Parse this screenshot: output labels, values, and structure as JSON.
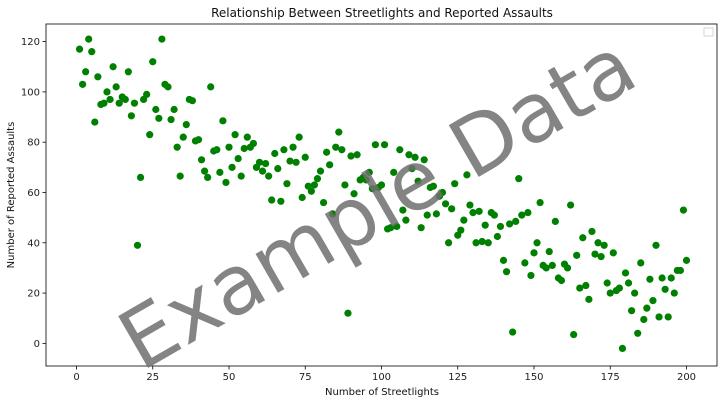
{
  "chart_data": {
    "type": "scatter",
    "title": "Relationship Between Streetlights and Reported Assaults",
    "xlabel": "Number of Streetlights",
    "ylabel": "Number of Reported Assaults",
    "xlim": [
      -10,
      210
    ],
    "ylim": [
      -9,
      127
    ],
    "xticks": [
      0,
      25,
      50,
      75,
      100,
      125,
      150,
      175,
      200
    ],
    "yticks": [
      0,
      20,
      40,
      60,
      80,
      100,
      120
    ],
    "grid": false,
    "legend": "top-right",
    "watermark": "Example Data",
    "point_color": "#008000",
    "points": [
      [
        1,
        117
      ],
      [
        2,
        103
      ],
      [
        3,
        108
      ],
      [
        4,
        121
      ],
      [
        5,
        116
      ],
      [
        6,
        88
      ],
      [
        7,
        106
      ],
      [
        8,
        95
      ],
      [
        9,
        95.5
      ],
      [
        10,
        100
      ],
      [
        11,
        97
      ],
      [
        12,
        110
      ],
      [
        13,
        102
      ],
      [
        14,
        95.5
      ],
      [
        15,
        98
      ],
      [
        16,
        97
      ],
      [
        17,
        108
      ],
      [
        18,
        90.5
      ],
      [
        19,
        95.5
      ],
      [
        20,
        39
      ],
      [
        21,
        66
      ],
      [
        22,
        97
      ],
      [
        23,
        99
      ],
      [
        24,
        83
      ],
      [
        25,
        112
      ],
      [
        26,
        93
      ],
      [
        27,
        89.5
      ],
      [
        28,
        121
      ],
      [
        29,
        103
      ],
      [
        30,
        102
      ],
      [
        31,
        89
      ],
      [
        32,
        93
      ],
      [
        33,
        78
      ],
      [
        34,
        66.5
      ],
      [
        35,
        82
      ],
      [
        36,
        87
      ],
      [
        37,
        97
      ],
      [
        38,
        96.5
      ],
      [
        39,
        80.5
      ],
      [
        40,
        81
      ],
      [
        41,
        73
      ],
      [
        42,
        68.5
      ],
      [
        43,
        66
      ],
      [
        44,
        102
      ],
      [
        45,
        76.5
      ],
      [
        46,
        77
      ],
      [
        47,
        68
      ],
      [
        48,
        88.5
      ],
      [
        49,
        64
      ],
      [
        50,
        78
      ],
      [
        51,
        70
      ],
      [
        52,
        83
      ],
      [
        53,
        73.5
      ],
      [
        54,
        66.5
      ],
      [
        55,
        77.5
      ],
      [
        56,
        82
      ],
      [
        57,
        78
      ],
      [
        58,
        79.5
      ],
      [
        59,
        70
      ],
      [
        60,
        72
      ],
      [
        61,
        68.5
      ],
      [
        62,
        71.5
      ],
      [
        63,
        66.5
      ],
      [
        64,
        57
      ],
      [
        65,
        75.5
      ],
      [
        66,
        69.5
      ],
      [
        67,
        56.5
      ],
      [
        68,
        77
      ],
      [
        69,
        63.5
      ],
      [
        70,
        72.5
      ],
      [
        71,
        78
      ],
      [
        72,
        72
      ],
      [
        73,
        82
      ],
      [
        74,
        58
      ],
      [
        75,
        74
      ],
      [
        76,
        62.5
      ],
      [
        77,
        60.5
      ],
      [
        78,
        63
      ],
      [
        79,
        65.5
      ],
      [
        80,
        68.5
      ],
      [
        81,
        56
      ],
      [
        82,
        76
      ],
      [
        83,
        71
      ],
      [
        84,
        51.5
      ],
      [
        85,
        78
      ],
      [
        86,
        84
      ],
      [
        87,
        77
      ],
      [
        88,
        63
      ],
      [
        89,
        12
      ],
      [
        90,
        74.5
      ],
      [
        91,
        59.5
      ],
      [
        92,
        75
      ],
      [
        93,
        65
      ],
      [
        94,
        66
      ],
      [
        95,
        65
      ],
      [
        96,
        68
      ],
      [
        97,
        61.5
      ],
      [
        98,
        79
      ],
      [
        99,
        62
      ],
      [
        100,
        63
      ],
      [
        101,
        79
      ],
      [
        102,
        45.5
      ],
      [
        103,
        46
      ],
      [
        104,
        68
      ],
      [
        105,
        46.5
      ],
      [
        106,
        77
      ],
      [
        107,
        53
      ],
      [
        108,
        49
      ],
      [
        109,
        75
      ],
      [
        110,
        69.5
      ],
      [
        111,
        74
      ],
      [
        112,
        64.5
      ],
      [
        113,
        46
      ],
      [
        114,
        73
      ],
      [
        115,
        51
      ],
      [
        116,
        62
      ],
      [
        117,
        62.5
      ],
      [
        118,
        51.5
      ],
      [
        119,
        58.5
      ],
      [
        120,
        60
      ],
      [
        121,
        55.5
      ],
      [
        122,
        40
      ],
      [
        123,
        53.5
      ],
      [
        124,
        63.5
      ],
      [
        125,
        43
      ],
      [
        126,
        45
      ],
      [
        127,
        49
      ],
      [
        128,
        67
      ],
      [
        129,
        55
      ],
      [
        130,
        52
      ],
      [
        131,
        40
      ],
      [
        132,
        52.5
      ],
      [
        133,
        40.5
      ],
      [
        134,
        47
      ],
      [
        135,
        40
      ],
      [
        136,
        52
      ],
      [
        137,
        51
      ],
      [
        138,
        42.5
      ],
      [
        139,
        46.5
      ],
      [
        140,
        33
      ],
      [
        141,
        28.5
      ],
      [
        142,
        47.5
      ],
      [
        143,
        4.5
      ],
      [
        144,
        48.5
      ],
      [
        145,
        65.5
      ],
      [
        146,
        51
      ],
      [
        147,
        32
      ],
      [
        148,
        52
      ],
      [
        149,
        27
      ],
      [
        150,
        36
      ],
      [
        151,
        40
      ],
      [
        152,
        56
      ],
      [
        153,
        31
      ],
      [
        154,
        30
      ],
      [
        155,
        36.5
      ],
      [
        156,
        31
      ],
      [
        157,
        48.5
      ],
      [
        158,
        26
      ],
      [
        159,
        25
      ],
      [
        160,
        31.5
      ],
      [
        161,
        30
      ],
      [
        162,
        55
      ],
      [
        163,
        3.5
      ],
      [
        164,
        35
      ],
      [
        165,
        22
      ],
      [
        166,
        42
      ],
      [
        167,
        23
      ],
      [
        168,
        17.5
      ],
      [
        169,
        44.5
      ],
      [
        170,
        35.5
      ],
      [
        171,
        40
      ],
      [
        172,
        34.5
      ],
      [
        173,
        39
      ],
      [
        174,
        24
      ],
      [
        175,
        20
      ],
      [
        176,
        36
      ],
      [
        177,
        21
      ],
      [
        178,
        22
      ],
      [
        179,
        -2
      ],
      [
        180,
        28
      ],
      [
        181,
        24
      ],
      [
        182,
        13
      ],
      [
        183,
        20
      ],
      [
        184,
        4
      ],
      [
        185,
        32
      ],
      [
        186,
        9.5
      ],
      [
        187,
        14
      ],
      [
        188,
        25.5
      ],
      [
        189,
        17
      ],
      [
        190,
        39
      ],
      [
        191,
        10.5
      ],
      [
        192,
        26
      ],
      [
        193,
        21.5
      ],
      [
        194,
        10.5
      ],
      [
        195,
        26
      ],
      [
        196,
        20
      ],
      [
        197,
        29
      ],
      [
        198,
        29
      ],
      [
        199,
        53
      ],
      [
        200,
        33
      ]
    ]
  }
}
